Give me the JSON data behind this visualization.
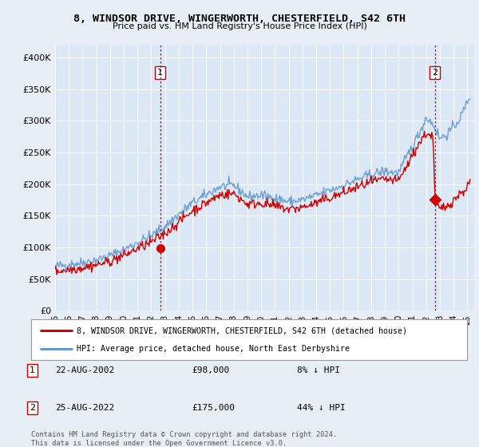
{
  "title": "8, WINDSOR DRIVE, WINGERWORTH, CHESTERFIELD, S42 6TH",
  "subtitle": "Price paid vs. HM Land Registry's House Price Index (HPI)",
  "legend_line1": "8, WINDSOR DRIVE, WINGERWORTH, CHESTERFIELD, S42 6TH (detached house)",
  "legend_line2": "HPI: Average price, detached house, North East Derbyshire",
  "annotation1_label": "1",
  "annotation1_date": "22-AUG-2002",
  "annotation1_price": "£98,000",
  "annotation1_hpi": "8% ↓ HPI",
  "annotation2_label": "2",
  "annotation2_date": "25-AUG-2022",
  "annotation2_price": "£175,000",
  "annotation2_hpi": "44% ↓ HPI",
  "footer": "Contains HM Land Registry data © Crown copyright and database right 2024.\nThis data is licensed under the Open Government Licence v3.0.",
  "xmin": 1995.0,
  "xmax": 2025.5,
  "ymin": 0,
  "ymax": 420000,
  "yticks": [
    0,
    50000,
    100000,
    150000,
    200000,
    250000,
    300000,
    350000,
    400000
  ],
  "ytick_labels": [
    "£0",
    "£50K",
    "£100K",
    "£150K",
    "£200K",
    "£250K",
    "£300K",
    "£350K",
    "£400K"
  ],
  "xticks": [
    1995,
    1996,
    1997,
    1998,
    1999,
    2000,
    2001,
    2002,
    2003,
    2004,
    2005,
    2006,
    2007,
    2008,
    2009,
    2010,
    2011,
    2012,
    2013,
    2014,
    2015,
    2016,
    2017,
    2018,
    2019,
    2020,
    2021,
    2022,
    2023,
    2024,
    2025
  ],
  "bg_color": "#e8eef5",
  "plot_bg_color": "#dce8f5",
  "hpi_color": "#6699cc",
  "price_color": "#cc0000",
  "vline_color": "#cc0000",
  "purchase1_x": 2002.64,
  "purchase1_y": 98000,
  "purchase2_x": 2022.64,
  "purchase2_y": 175000
}
